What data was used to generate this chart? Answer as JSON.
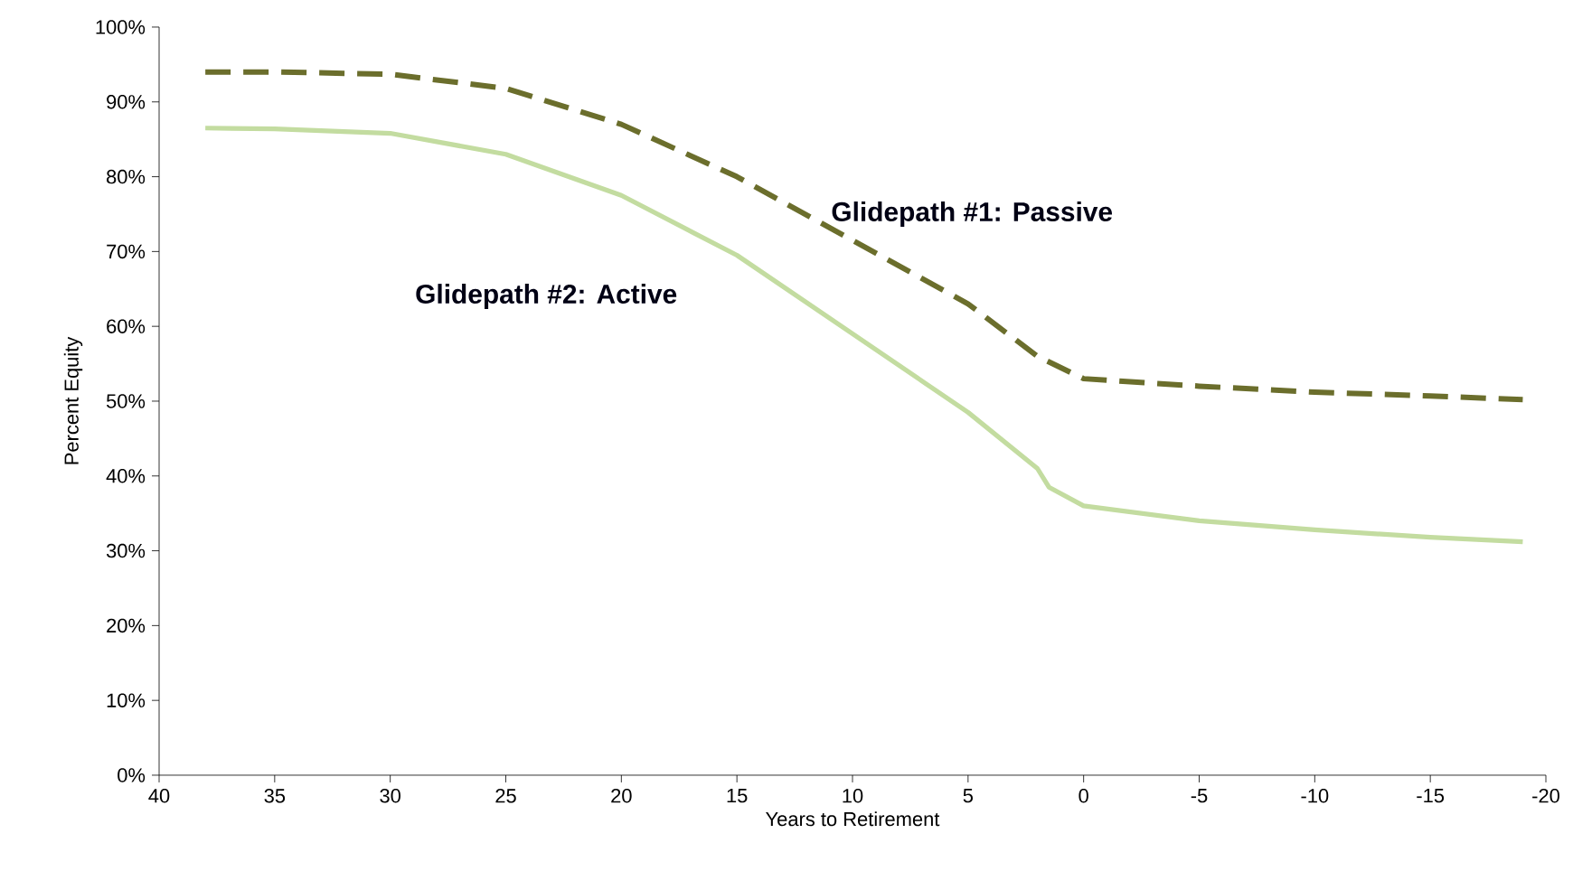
{
  "chart_data": {
    "type": "line",
    "xlabel": "Years to Retirement",
    "ylabel": "Percent  Equity",
    "xlim": [
      40,
      -20
    ],
    "xticks": [
      40,
      35,
      30,
      25,
      20,
      15,
      10,
      5,
      0,
      -5,
      -10,
      -15,
      -20
    ],
    "ylim": [
      0,
      100
    ],
    "yticks": [
      {
        "value": 0,
        "label": "0%"
      },
      {
        "value": 10,
        "label": "10%"
      },
      {
        "value": 20,
        "label": "20%"
      },
      {
        "value": 30,
        "label": "30%"
      },
      {
        "value": 40,
        "label": "40%"
      },
      {
        "value": 50,
        "label": "50%"
      },
      {
        "value": 60,
        "label": "60%"
      },
      {
        "value": 70,
        "label": "70%"
      },
      {
        "value": 80,
        "label": "80%"
      },
      {
        "value": 90,
        "label": "90%"
      },
      {
        "value": 100,
        "label": "100%"
      }
    ],
    "grid": false,
    "marker": "none",
    "series": [
      {
        "name": "Glidepath #1:  Passive",
        "color": "#6b6e2c",
        "line_style": "dashed",
        "x": [
          38,
          35,
          30,
          25,
          20,
          15,
          10,
          5,
          2,
          0,
          -5,
          -10,
          -15,
          -19
        ],
        "values": [
          94,
          94,
          93.7,
          91.8,
          87,
          80,
          71.5,
          63,
          56,
          53,
          52,
          51.2,
          50.7,
          50.2
        ]
      },
      {
        "name": "Glidepath #2:  Active",
        "color": "#c3dca0",
        "line_style": "solid",
        "x": [
          38,
          35,
          30,
          25,
          20,
          15,
          10,
          5,
          2,
          1.5,
          0,
          -5,
          -10,
          -15,
          -19
        ],
        "values": [
          86.5,
          86.4,
          85.8,
          83,
          77.5,
          69.5,
          59,
          48.5,
          41,
          38.5,
          36,
          34,
          32.8,
          31.8,
          31.2
        ]
      }
    ]
  }
}
